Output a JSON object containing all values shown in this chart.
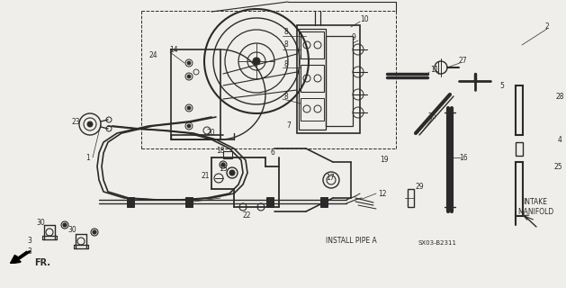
{
  "bg_color": "#f0eeea",
  "line_color": "#2a2a2a",
  "figsize": [
    6.29,
    3.2
  ],
  "dpi": 100,
  "labels": {
    "install_pipe_a": "INSTALL PIPE A",
    "intake_manifold": "INTAKE\nMANIFOLD",
    "fr": "FR.",
    "diagram_id": "SX03-B2311"
  }
}
